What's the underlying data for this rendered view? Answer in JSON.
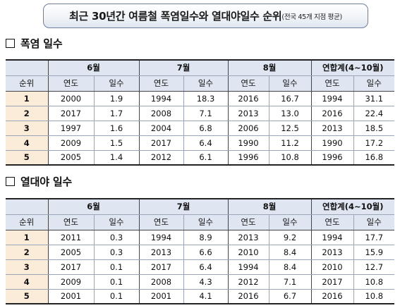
{
  "header": {
    "title_main": "최근 30년간 여름철 폭염일수와 열대야일수 순위",
    "title_sub": "(전국 45개 지점 평균)"
  },
  "sections": [
    {
      "title": "폭염 일수",
      "rank_label": "순위",
      "groups": [
        "6월",
        "7월",
        "8월",
        "연합계(4~10월)"
      ],
      "sub_labels": [
        "연도",
        "일수"
      ],
      "rows": [
        {
          "rank": "1",
          "cells": [
            "2000",
            "1.9",
            "1994",
            "18.3",
            "2016",
            "16.7",
            "1994",
            "31.1"
          ]
        },
        {
          "rank": "2",
          "cells": [
            "2017",
            "1.7",
            "2008",
            "7.1",
            "2013",
            "13.0",
            "2016",
            "22.4"
          ]
        },
        {
          "rank": "3",
          "cells": [
            "1997",
            "1.6",
            "2004",
            "6.8",
            "2006",
            "12.5",
            "2013",
            "18.5"
          ]
        },
        {
          "rank": "4",
          "cells": [
            "2009",
            "1.5",
            "2017",
            "6.4",
            "1990",
            "11.2",
            "1990",
            "17.2"
          ]
        },
        {
          "rank": "5",
          "cells": [
            "2005",
            "1.4",
            "2012",
            "6.1",
            "1996",
            "10.8",
            "1996",
            "16.8"
          ]
        }
      ]
    },
    {
      "title": "열대야 일수",
      "rank_label": "순위",
      "groups": [
        "6월",
        "7월",
        "8월",
        "연합계(4~10월)"
      ],
      "sub_labels": [
        "연도",
        "일수"
      ],
      "rows": [
        {
          "rank": "1",
          "cells": [
            "2011",
            "0.3",
            "1994",
            "8.9",
            "2013",
            "9.2",
            "1994",
            "17.7"
          ]
        },
        {
          "rank": "2",
          "cells": [
            "2005",
            "0.3",
            "2013",
            "6.6",
            "2010",
            "8.4",
            "2013",
            "15.9"
          ]
        },
        {
          "rank": "3",
          "cells": [
            "2017",
            "0.1",
            "2017",
            "6.4",
            "1994",
            "8.4",
            "2010",
            "12.7"
          ]
        },
        {
          "rank": "4",
          "cells": [
            "2009",
            "0.1",
            "2008",
            "4.3",
            "2012",
            "7.1",
            "2017",
            "10.8"
          ]
        },
        {
          "rank": "5",
          "cells": [
            "2001",
            "0.1",
            "2001",
            "4.1",
            "2016",
            "6.7",
            "2016",
            "10.8"
          ]
        }
      ]
    }
  ]
}
